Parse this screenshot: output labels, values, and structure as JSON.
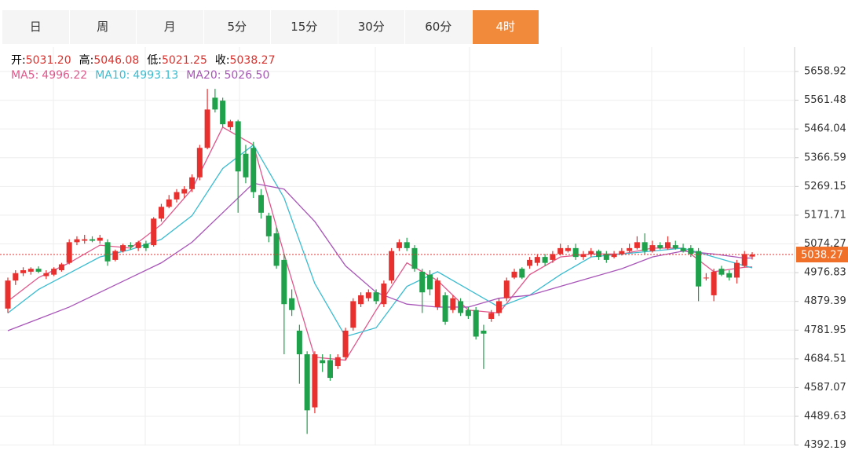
{
  "tabs": [
    "日",
    "周",
    "月",
    "5分",
    "15分",
    "30分",
    "60分",
    "4时"
  ],
  "active_tab": 7,
  "chart_data": {
    "type": "candlestick",
    "info": [
      {
        "label": "开:",
        "value": "5031.20"
      },
      {
        "label": "高:",
        "value": "5046.08"
      },
      {
        "label": "低:",
        "value": "5021.25"
      },
      {
        "label": "收:",
        "value": "5038.27"
      }
    ],
    "up_color": "#e8312f",
    "down_color": "#1fa04a",
    "candles": [
      [
        4855,
        4960,
        4840,
        4950
      ],
      [
        4950,
        4985,
        4935,
        4975
      ],
      [
        4975,
        4995,
        4965,
        4985
      ],
      [
        4980,
        4995,
        4970,
        4990
      ],
      [
        4990,
        4998,
        4975,
        4980
      ],
      [
        4965,
        4985,
        4955,
        4975
      ],
      [
        4970,
        4995,
        4965,
        4990
      ],
      [
        4985,
        5010,
        4980,
        5005
      ],
      [
        5010,
        5090,
        5005,
        5080
      ],
      [
        5080,
        5100,
        5070,
        5090
      ],
      [
        5085,
        5105,
        5075,
        5090
      ],
      [
        5090,
        5100,
        5080,
        5085
      ],
      [
        5085,
        5105,
        5075,
        5095
      ],
      [
        5080,
        5090,
        5000,
        5015
      ],
      [
        5020,
        5055,
        5015,
        5050
      ],
      [
        5050,
        5075,
        5045,
        5070
      ],
      [
        5070,
        5080,
        5055,
        5065
      ],
      [
        5060,
        5085,
        5050,
        5080
      ],
      [
        5075,
        5085,
        5050,
        5060
      ],
      [
        5070,
        5165,
        5065,
        5160
      ],
      [
        5160,
        5210,
        5150,
        5200
      ],
      [
        5200,
        5240,
        5195,
        5225
      ],
      [
        5225,
        5260,
        5215,
        5250
      ],
      [
        5245,
        5270,
        5230,
        5260
      ],
      [
        5260,
        5310,
        5250,
        5300
      ],
      [
        5300,
        5410,
        5290,
        5400
      ],
      [
        5400,
        5600,
        5395,
        5530
      ],
      [
        5570,
        5600,
        5520,
        5530
      ],
      [
        5560,
        5570,
        5470,
        5480
      ],
      [
        5470,
        5495,
        5460,
        5490
      ],
      [
        5490,
        5495,
        5180,
        5320
      ],
      [
        5380,
        5410,
        5280,
        5300
      ],
      [
        5400,
        5420,
        5230,
        5250
      ],
      [
        5240,
        5260,
        5160,
        5180
      ],
      [
        5170,
        5180,
        5080,
        5100
      ],
      [
        5110,
        5130,
        4990,
        5000
      ],
      [
        5020,
        5040,
        4700,
        4870
      ],
      [
        4890,
        4920,
        4830,
        4850
      ],
      [
        4780,
        4800,
        4600,
        4700
      ],
      [
        4700,
        4710,
        4430,
        4510
      ],
      [
        4520,
        4710,
        4500,
        4700
      ],
      [
        4680,
        4700,
        4640,
        4670
      ],
      [
        4680,
        4700,
        4610,
        4620
      ],
      [
        4660,
        4700,
        4650,
        4690
      ],
      [
        4690,
        4790,
        4680,
        4780
      ],
      [
        4790,
        4890,
        4780,
        4880
      ],
      [
        4870,
        4910,
        4860,
        4900
      ],
      [
        4890,
        4920,
        4880,
        4910
      ],
      [
        4910,
        4920,
        4870,
        4880
      ],
      [
        4870,
        4950,
        4860,
        4940
      ],
      [
        4950,
        5060,
        4940,
        5050
      ],
      [
        5060,
        5090,
        5050,
        5080
      ],
      [
        5080,
        5095,
        5050,
        5060
      ],
      [
        5060,
        5070,
        4980,
        4990
      ],
      [
        4980,
        4990,
        4840,
        4910
      ],
      [
        4970,
        4985,
        4900,
        4920
      ],
      [
        4860,
        4960,
        4850,
        4950
      ],
      [
        4900,
        4910,
        4800,
        4810
      ],
      [
        4850,
        4900,
        4840,
        4890
      ],
      [
        4880,
        4890,
        4830,
        4840
      ],
      [
        4850,
        4860,
        4820,
        4830
      ],
      [
        4850,
        4860,
        4750,
        4760
      ],
      [
        4780,
        4800,
        4650,
        4770
      ],
      [
        4820,
        4850,
        4810,
        4840
      ],
      [
        4840,
        4890,
        4830,
        4880
      ],
      [
        4890,
        4960,
        4880,
        4950
      ],
      [
        4960,
        4990,
        4955,
        4980
      ],
      [
        4990,
        4995,
        4955,
        4960
      ],
      [
        5000,
        5030,
        4990,
        5020
      ],
      [
        5010,
        5040,
        5000,
        5030
      ],
      [
        5030,
        5040,
        5000,
        5010
      ],
      [
        5020,
        5050,
        5010,
        5040
      ],
      [
        5040,
        5075,
        5035,
        5060
      ],
      [
        5050,
        5070,
        5045,
        5060
      ],
      [
        5060,
        5075,
        5020,
        5030
      ],
      [
        5030,
        5050,
        5020,
        5040
      ],
      [
        5040,
        5060,
        5030,
        5050
      ],
      [
        5050,
        5055,
        5020,
        5030
      ],
      [
        5040,
        5050,
        5010,
        5020
      ],
      [
        5030,
        5050,
        5025,
        5040
      ],
      [
        5040,
        5060,
        5035,
        5050
      ],
      [
        5050,
        5075,
        5045,
        5060
      ],
      [
        5060,
        5100,
        5055,
        5080
      ],
      [
        5080,
        5110,
        5040,
        5050
      ],
      [
        5050,
        5085,
        5045,
        5070
      ],
      [
        5070,
        5080,
        5055,
        5060
      ],
      [
        5060,
        5100,
        5055,
        5080
      ],
      [
        5070,
        5085,
        5055,
        5060
      ],
      [
        5060,
        5075,
        5045,
        5050
      ],
      [
        5060,
        5070,
        5030,
        5040
      ],
      [
        5050,
        5060,
        4880,
        4930
      ],
      [
        4960,
        4975,
        4950,
        4960
      ],
      [
        4900,
        4990,
        4880,
        4980
      ],
      [
        4990,
        5000,
        4965,
        4970
      ],
      [
        4975,
        4985,
        4950,
        4960
      ],
      [
        4960,
        5020,
        4940,
        5010
      ],
      [
        5000,
        5050,
        4995,
        5040
      ],
      [
        5031.2,
        5046.08,
        5021.25,
        5038.27
      ]
    ],
    "ma_x": [
      0,
      4,
      8,
      12,
      16,
      20,
      24,
      28,
      32,
      36,
      40,
      44,
      48,
      52,
      56,
      60,
      64,
      68,
      72,
      76,
      80,
      84,
      88,
      92,
      96,
      97
    ],
    "series": [
      {
        "name": "MA5:",
        "color": "#e0578a",
        "last_label": "4996.22",
        "values": [
          4880,
          4960,
          5010,
          5070,
          5060,
          5140,
          5260,
          5470,
          5410,
          5040,
          4690,
          4680,
          4850,
          5010,
          4950,
          4850,
          4840,
          4970,
          5030,
          5040,
          5040,
          5060,
          5060,
          4980,
          4995,
          4996.22
        ]
      },
      {
        "name": "MA10:",
        "color": "#3bbcd0",
        "last_label": "4993.13",
        "values": [
          4840,
          4920,
          4975,
          5030,
          5055,
          5090,
          5170,
          5330,
          5410,
          5230,
          4940,
          4760,
          4790,
          4930,
          4980,
          4920,
          4860,
          4900,
          4970,
          5030,
          5040,
          5050,
          5060,
          5030,
          5000,
          4993.13
        ]
      },
      {
        "name": "MA20:",
        "color": "#a855b8",
        "last_label": "5026.50",
        "values": [
          4780,
          4820,
          4860,
          4910,
          4960,
          5010,
          5080,
          5180,
          5280,
          5260,
          5150,
          5000,
          4910,
          4870,
          4860,
          4860,
          4890,
          4900,
          4930,
          4960,
          4990,
          5030,
          5050,
          5040,
          5026,
          5026.5
        ]
      }
    ],
    "ylim": [
      4392.19,
      5741.5
    ],
    "yticks": [
      5658.92,
      5561.48,
      5464.04,
      5366.59,
      5269.15,
      5171.71,
      5074.27,
      4976.83,
      4879.39,
      4781.95,
      4684.51,
      4587.07,
      4489.63,
      4392.19
    ],
    "grid": true
  }
}
